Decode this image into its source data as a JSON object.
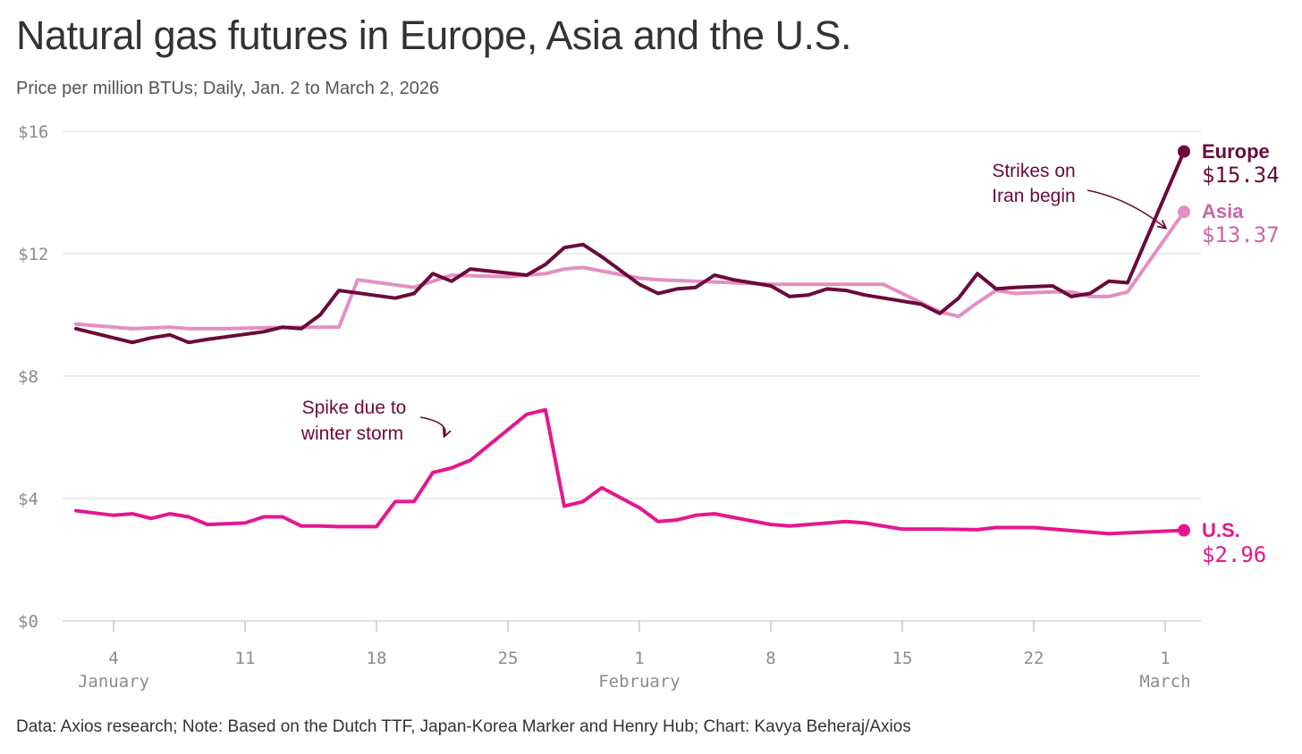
{
  "title": "Natural gas futures in Europe, Asia and the U.S.",
  "subtitle": "Price per million BTUs; Daily, Jan. 2 to March 2, 2026",
  "footer": "Data: Axios research; Note: Based on the Dutch TTF, Japan-Korea Marker and Henry Hub; Chart: Kavya Beheraj/Axios",
  "chart_data": {
    "type": "line",
    "title": "Natural gas futures in Europe, Asia and the U.S.",
    "ylabel": "Price per million BTUs",
    "ylim": [
      0,
      16
    ],
    "yticks": [
      0,
      4,
      8,
      12,
      16
    ],
    "ytick_labels": [
      "$0",
      "$4",
      "$8",
      "$12",
      "$16"
    ],
    "xlim": [
      2,
      61.5
    ],
    "xticks": [
      {
        "day": 4,
        "label": "4",
        "month": "January"
      },
      {
        "day": 11,
        "label": "11",
        "month": ""
      },
      {
        "day": 18,
        "label": "18",
        "month": ""
      },
      {
        "day": 25,
        "label": "25",
        "month": ""
      },
      {
        "day": 32,
        "label": "1",
        "month": "February"
      },
      {
        "day": 39,
        "label": "8",
        "month": ""
      },
      {
        "day": 46,
        "label": "15",
        "month": ""
      },
      {
        "day": 53,
        "label": "22",
        "month": ""
      },
      {
        "day": 60,
        "label": "1",
        "month": "March"
      }
    ],
    "grid": true,
    "series": [
      {
        "name": "Asia",
        "label": "Asia",
        "value_label": "$13.37",
        "color": "#e38fc3",
        "label_color": "#c966a4",
        "x": [
          2,
          5,
          7,
          8,
          10,
          12,
          14,
          16,
          17,
          20,
          22,
          25,
          27,
          28,
          29,
          32,
          33,
          37,
          39,
          40,
          42,
          44,
          45,
          47,
          48,
          49,
          50,
          51,
          52,
          54,
          55,
          56,
          57,
          58,
          61
        ],
        "values": [
          9.7,
          9.55,
          9.6,
          9.55,
          9.55,
          9.58,
          9.6,
          9.6,
          11.15,
          10.9,
          11.3,
          11.25,
          11.35,
          11.5,
          11.55,
          11.2,
          11.15,
          11.05,
          11.0,
          11.0,
          11.0,
          11.0,
          11.0,
          10.4,
          10.1,
          9.95,
          10.4,
          10.8,
          10.7,
          10.75,
          10.75,
          10.6,
          10.6,
          10.75,
          13.37
        ]
      },
      {
        "name": "Europe",
        "label": "Europe",
        "value_label": "$15.34",
        "color": "#6b0a3a",
        "label_color": "#6b0a3a",
        "x": [
          2,
          5,
          6,
          7,
          8,
          9,
          12,
          13,
          14,
          15,
          16,
          19,
          20,
          21,
          22,
          23,
          26,
          27,
          28,
          29,
          30,
          32,
          33,
          34,
          35,
          36,
          37,
          39,
          40,
          41,
          42,
          43,
          44,
          47,
          48,
          49,
          50,
          51,
          52,
          54,
          55,
          56,
          57,
          58,
          61
        ],
        "values": [
          9.55,
          9.1,
          9.25,
          9.35,
          9.1,
          9.2,
          9.45,
          9.6,
          9.55,
          10.0,
          10.8,
          10.55,
          10.7,
          11.35,
          11.1,
          11.5,
          11.3,
          11.65,
          12.2,
          12.3,
          11.9,
          11.0,
          10.7,
          10.85,
          10.9,
          11.3,
          11.15,
          10.95,
          10.6,
          10.65,
          10.85,
          10.8,
          10.65,
          10.35,
          10.05,
          10.55,
          11.35,
          10.85,
          10.9,
          10.95,
          10.6,
          10.7,
          11.1,
          11.05,
          15.34
        ]
      },
      {
        "name": "U.S.",
        "label": "U.S.",
        "value_label": "$2.96",
        "color": "#e5168e",
        "label_color": "#e5168e",
        "x": [
          2,
          4,
          5,
          6,
          7,
          8,
          9,
          11,
          12,
          13,
          14,
          15,
          16,
          18,
          19,
          20,
          21,
          22,
          23,
          26,
          27,
          28,
          29,
          30,
          32,
          33,
          34,
          35,
          36,
          39,
          40,
          41,
          43,
          44,
          46,
          48,
          50,
          51,
          53,
          54,
          57,
          58,
          61
        ],
        "values": [
          3.6,
          3.45,
          3.5,
          3.35,
          3.5,
          3.4,
          3.15,
          3.2,
          3.4,
          3.4,
          3.1,
          3.1,
          3.08,
          3.08,
          3.9,
          3.9,
          4.85,
          5.0,
          5.25,
          6.75,
          6.9,
          3.75,
          3.9,
          4.35,
          3.7,
          3.25,
          3.3,
          3.45,
          3.5,
          3.15,
          3.1,
          3.15,
          3.25,
          3.2,
          3.0,
          3.0,
          2.98,
          3.05,
          3.05,
          3.0,
          2.85,
          2.88,
          2.96
        ]
      }
    ],
    "annotations": [
      {
        "text": [
          "Strikes on",
          "Iran begin"
        ],
        "target_x": 60.0,
        "target_y": 12.85
      },
      {
        "text": [
          "Spike due to",
          "winter storm"
        ],
        "target_x": 26.0,
        "target_y": 6.05
      }
    ]
  }
}
